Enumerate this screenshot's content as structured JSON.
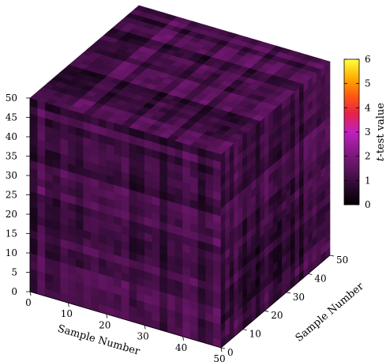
{
  "chart_data": {
    "type": "heatmap",
    "subtype": "3d-cube",
    "x_axis": {
      "label": "Sample Number",
      "range": [
        0,
        50
      ],
      "ticks": [
        0,
        10,
        20,
        30,
        40,
        50
      ]
    },
    "y_axis": {
      "label": "Sample Number",
      "range": [
        0,
        50
      ],
      "ticks": [
        0,
        10,
        20,
        30,
        40,
        50
      ]
    },
    "z_axis": {
      "label": "",
      "range": [
        0,
        50
      ],
      "ticks": [
        0,
        5,
        10,
        15,
        20,
        25,
        30,
        35,
        40,
        45,
        50
      ]
    },
    "colorbar": {
      "label_italic": "t",
      "label_rest": "-test value",
      "range": [
        0,
        6
      ],
      "ticks": [
        0,
        1,
        2,
        3,
        4,
        5,
        6
      ],
      "palette": [
        "#000000",
        "#2a0a2e",
        "#5c145c",
        "#8a1a8a",
        "#c020c0",
        "#e8204a",
        "#ff5a10",
        "#ffb000",
        "#ffff40"
      ]
    },
    "values_note": "t-test values across the cube are mostly between 0 and 2 (dark purple)"
  }
}
